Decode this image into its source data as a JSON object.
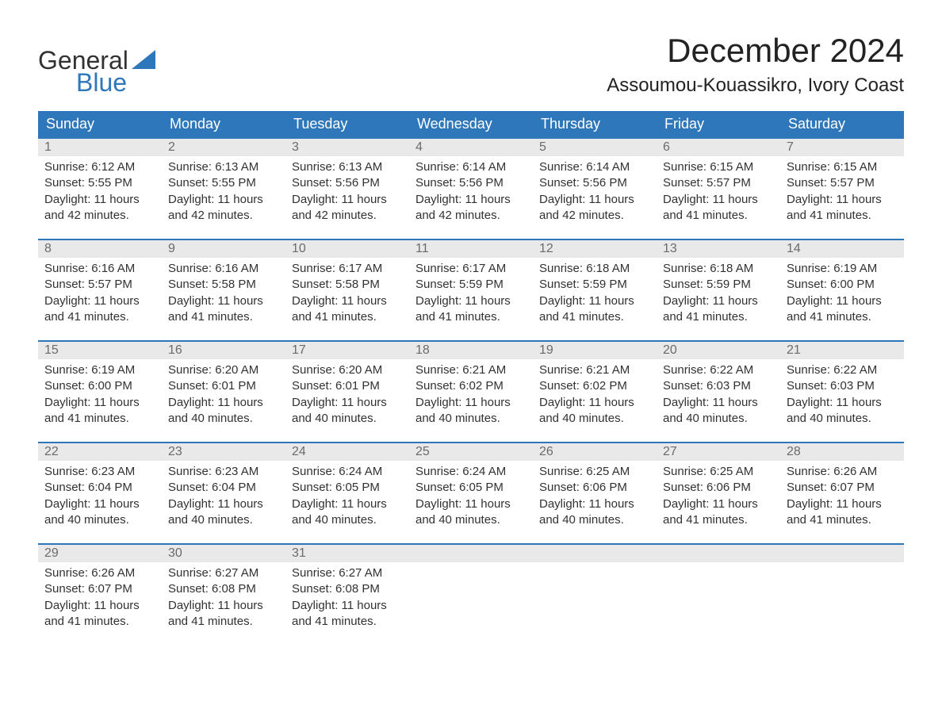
{
  "logo": {
    "word1": "General",
    "word2": "Blue",
    "word2_color": "#2f77bb"
  },
  "title": "December 2024",
  "location": "Assoumou-Kouassikro, Ivory Coast",
  "colors": {
    "header_bg": "#2f77bb",
    "header_text": "#ffffff",
    "daynum_bg": "#e9e9e9",
    "daynum_text": "#6b6b6b",
    "row_border": "#2f77bb",
    "body_text": "#323232",
    "page_bg": "#ffffff"
  },
  "typography": {
    "title_fontsize": 42,
    "location_fontsize": 24,
    "header_fontsize": 18,
    "daynum_fontsize": 16,
    "body_fontsize": 15,
    "logo_fontsize": 32
  },
  "layout": {
    "columns": 7,
    "rows": 5,
    "first_weekday": "Sunday"
  },
  "weekdays": [
    "Sunday",
    "Monday",
    "Tuesday",
    "Wednesday",
    "Thursday",
    "Friday",
    "Saturday"
  ],
  "labels": {
    "sunrise": "Sunrise: ",
    "sunset": "Sunset: ",
    "daylight": "Daylight: "
  },
  "days": [
    {
      "n": "1",
      "sunrise": "6:12 AM",
      "sunset": "5:55 PM",
      "daylight": "11 hours and 42 minutes."
    },
    {
      "n": "2",
      "sunrise": "6:13 AM",
      "sunset": "5:55 PM",
      "daylight": "11 hours and 42 minutes."
    },
    {
      "n": "3",
      "sunrise": "6:13 AM",
      "sunset": "5:56 PM",
      "daylight": "11 hours and 42 minutes."
    },
    {
      "n": "4",
      "sunrise": "6:14 AM",
      "sunset": "5:56 PM",
      "daylight": "11 hours and 42 minutes."
    },
    {
      "n": "5",
      "sunrise": "6:14 AM",
      "sunset": "5:56 PM",
      "daylight": "11 hours and 42 minutes."
    },
    {
      "n": "6",
      "sunrise": "6:15 AM",
      "sunset": "5:57 PM",
      "daylight": "11 hours and 41 minutes."
    },
    {
      "n": "7",
      "sunrise": "6:15 AM",
      "sunset": "5:57 PM",
      "daylight": "11 hours and 41 minutes."
    },
    {
      "n": "8",
      "sunrise": "6:16 AM",
      "sunset": "5:57 PM",
      "daylight": "11 hours and 41 minutes."
    },
    {
      "n": "9",
      "sunrise": "6:16 AM",
      "sunset": "5:58 PM",
      "daylight": "11 hours and 41 minutes."
    },
    {
      "n": "10",
      "sunrise": "6:17 AM",
      "sunset": "5:58 PM",
      "daylight": "11 hours and 41 minutes."
    },
    {
      "n": "11",
      "sunrise": "6:17 AM",
      "sunset": "5:59 PM",
      "daylight": "11 hours and 41 minutes."
    },
    {
      "n": "12",
      "sunrise": "6:18 AM",
      "sunset": "5:59 PM",
      "daylight": "11 hours and 41 minutes."
    },
    {
      "n": "13",
      "sunrise": "6:18 AM",
      "sunset": "5:59 PM",
      "daylight": "11 hours and 41 minutes."
    },
    {
      "n": "14",
      "sunrise": "6:19 AM",
      "sunset": "6:00 PM",
      "daylight": "11 hours and 41 minutes."
    },
    {
      "n": "15",
      "sunrise": "6:19 AM",
      "sunset": "6:00 PM",
      "daylight": "11 hours and 41 minutes."
    },
    {
      "n": "16",
      "sunrise": "6:20 AM",
      "sunset": "6:01 PM",
      "daylight": "11 hours and 40 minutes."
    },
    {
      "n": "17",
      "sunrise": "6:20 AM",
      "sunset": "6:01 PM",
      "daylight": "11 hours and 40 minutes."
    },
    {
      "n": "18",
      "sunrise": "6:21 AM",
      "sunset": "6:02 PM",
      "daylight": "11 hours and 40 minutes."
    },
    {
      "n": "19",
      "sunrise": "6:21 AM",
      "sunset": "6:02 PM",
      "daylight": "11 hours and 40 minutes."
    },
    {
      "n": "20",
      "sunrise": "6:22 AM",
      "sunset": "6:03 PM",
      "daylight": "11 hours and 40 minutes."
    },
    {
      "n": "21",
      "sunrise": "6:22 AM",
      "sunset": "6:03 PM",
      "daylight": "11 hours and 40 minutes."
    },
    {
      "n": "22",
      "sunrise": "6:23 AM",
      "sunset": "6:04 PM",
      "daylight": "11 hours and 40 minutes."
    },
    {
      "n": "23",
      "sunrise": "6:23 AM",
      "sunset": "6:04 PM",
      "daylight": "11 hours and 40 minutes."
    },
    {
      "n": "24",
      "sunrise": "6:24 AM",
      "sunset": "6:05 PM",
      "daylight": "11 hours and 40 minutes."
    },
    {
      "n": "25",
      "sunrise": "6:24 AM",
      "sunset": "6:05 PM",
      "daylight": "11 hours and 40 minutes."
    },
    {
      "n": "26",
      "sunrise": "6:25 AM",
      "sunset": "6:06 PM",
      "daylight": "11 hours and 40 minutes."
    },
    {
      "n": "27",
      "sunrise": "6:25 AM",
      "sunset": "6:06 PM",
      "daylight": "11 hours and 41 minutes."
    },
    {
      "n": "28",
      "sunrise": "6:26 AM",
      "sunset": "6:07 PM",
      "daylight": "11 hours and 41 minutes."
    },
    {
      "n": "29",
      "sunrise": "6:26 AM",
      "sunset": "6:07 PM",
      "daylight": "11 hours and 41 minutes."
    },
    {
      "n": "30",
      "sunrise": "6:27 AM",
      "sunset": "6:08 PM",
      "daylight": "11 hours and 41 minutes."
    },
    {
      "n": "31",
      "sunrise": "6:27 AM",
      "sunset": "6:08 PM",
      "daylight": "11 hours and 41 minutes."
    }
  ]
}
